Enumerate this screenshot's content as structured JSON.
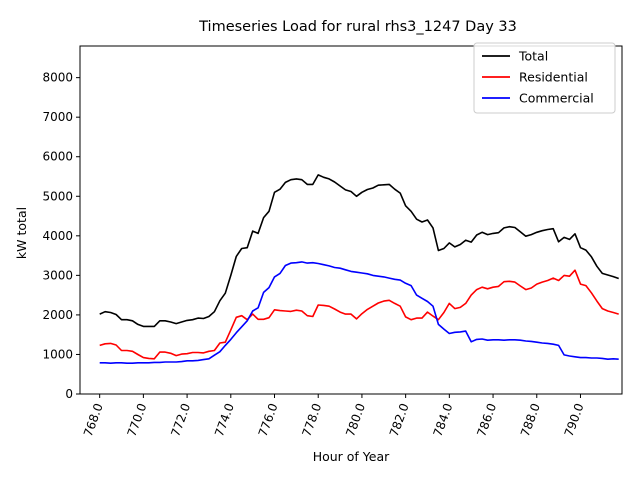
{
  "chart_data": {
    "type": "line",
    "title": "Timeseries Load for rural rhs3_1247  Day 33",
    "xlabel": "Hour of Year",
    "ylabel": "kW total",
    "xlim": [
      767.1,
      791.9
    ],
    "ylim": [
      0,
      8800
    ],
    "xticks": [
      768,
      770,
      772,
      774,
      776,
      778,
      780,
      782,
      784,
      786,
      788,
      790
    ],
    "xtick_labels": [
      "768.0",
      "770.0",
      "772.0",
      "774.0",
      "776.0",
      "778.0",
      "780.0",
      "782.0",
      "784.0",
      "786.0",
      "788.0",
      "790.0"
    ],
    "yticks": [
      0,
      1000,
      2000,
      3000,
      4000,
      5000,
      6000,
      7000,
      8000
    ],
    "ytick_labels": [
      "0",
      "1000",
      "2000",
      "3000",
      "4000",
      "5000",
      "6000",
      "7000",
      "8000"
    ],
    "legend_position": "top-right",
    "x": [
      768.0,
      768.25,
      768.5,
      768.75,
      769.0,
      769.25,
      769.5,
      769.75,
      770.0,
      770.25,
      770.5,
      770.75,
      771.0,
      771.25,
      771.5,
      771.75,
      772.0,
      772.25,
      772.5,
      772.75,
      773.0,
      773.25,
      773.5,
      773.75,
      774.0,
      774.25,
      774.5,
      774.75,
      775.0,
      775.25,
      775.5,
      775.75,
      776.0,
      776.25,
      776.5,
      776.75,
      777.0,
      777.25,
      777.5,
      777.75,
      778.0,
      778.25,
      778.5,
      778.75,
      779.0,
      779.25,
      779.5,
      779.75,
      780.0,
      780.25,
      780.5,
      780.75,
      781.0,
      781.25,
      781.5,
      781.75,
      782.0,
      782.25,
      782.5,
      782.75,
      783.0,
      783.25,
      783.5,
      783.75,
      784.0,
      784.25,
      784.5,
      784.75,
      785.0,
      785.25,
      785.5,
      785.75,
      786.0,
      786.25,
      786.5,
      786.75,
      787.0,
      787.25,
      787.5,
      787.75,
      788.0,
      788.25,
      788.5,
      788.75,
      789.0,
      789.25,
      789.5,
      789.75,
      790.0,
      790.25,
      790.5,
      790.75,
      791.0,
      791.25,
      791.5,
      791.75
    ],
    "series": [
      {
        "name": "Total",
        "color": "#000000",
        "values": [
          2020,
          2080,
          2060,
          2010,
          1880,
          1880,
          1850,
          1760,
          1710,
          1710,
          1710,
          1850,
          1850,
          1820,
          1780,
          1820,
          1860,
          1880,
          1920,
          1910,
          1960,
          2080,
          2360,
          2550,
          3000,
          3480,
          3680,
          3700,
          4120,
          4060,
          4460,
          4620,
          5100,
          5180,
          5350,
          5420,
          5440,
          5420,
          5300,
          5300,
          5540,
          5480,
          5440,
          5360,
          5260,
          5160,
          5120,
          5000,
          5100,
          5170,
          5210,
          5280,
          5290,
          5300,
          5180,
          5080,
          4760,
          4620,
          4420,
          4350,
          4400,
          4200,
          3630,
          3680,
          3820,
          3720,
          3780,
          3890,
          3840,
          4020,
          4090,
          4030,
          4060,
          4080,
          4200,
          4230,
          4210,
          4100,
          3990,
          4030,
          4090,
          4130,
          4160,
          4180,
          3850,
          3960,
          3910,
          4050,
          3700,
          3640,
          3470,
          3230,
          3050,
          3010,
          2970,
          2920
        ]
      },
      {
        "name": "Residential",
        "color": "#ff0000",
        "values": [
          1230,
          1270,
          1280,
          1240,
          1100,
          1100,
          1080,
          1000,
          920,
          900,
          890,
          1060,
          1060,
          1030,
          970,
          1010,
          1020,
          1050,
          1050,
          1040,
          1080,
          1100,
          1290,
          1310,
          1620,
          1940,
          1980,
          1880,
          2020,
          1890,
          1890,
          1930,
          2130,
          2110,
          2100,
          2090,
          2120,
          2100,
          1980,
          1960,
          2250,
          2240,
          2220,
          2150,
          2070,
          2020,
          2020,
          1900,
          2030,
          2140,
          2220,
          2300,
          2350,
          2370,
          2290,
          2220,
          1950,
          1880,
          1920,
          1920,
          2070,
          1970,
          1880,
          2060,
          2290,
          2160,
          2190,
          2290,
          2500,
          2640,
          2700,
          2660,
          2700,
          2720,
          2840,
          2850,
          2830,
          2730,
          2640,
          2680,
          2780,
          2830,
          2870,
          2930,
          2870,
          3000,
          2980,
          3130,
          2780,
          2740,
          2560,
          2350,
          2160,
          2100,
          2060,
          2020
        ]
      },
      {
        "name": "Commercial",
        "color": "#0000ff",
        "values": [
          790,
          790,
          780,
          790,
          790,
          780,
          780,
          790,
          790,
          790,
          800,
          800,
          810,
          810,
          810,
          820,
          840,
          840,
          850,
          870,
          890,
          980,
          1070,
          1230,
          1380,
          1550,
          1700,
          1850,
          2100,
          2180,
          2570,
          2690,
          2960,
          3050,
          3250,
          3310,
          3320,
          3340,
          3310,
          3320,
          3300,
          3270,
          3240,
          3200,
          3180,
          3140,
          3100,
          3080,
          3060,
          3040,
          3000,
          2980,
          2960,
          2930,
          2900,
          2880,
          2800,
          2740,
          2500,
          2420,
          2340,
          2220,
          1760,
          1640,
          1530,
          1560,
          1570,
          1590,
          1320,
          1380,
          1390,
          1360,
          1370,
          1370,
          1360,
          1370,
          1370,
          1360,
          1340,
          1330,
          1310,
          1290,
          1280,
          1260,
          1230,
          990,
          960,
          940,
          920,
          920,
          910,
          910,
          900,
          880,
          890,
          880
        ]
      }
    ]
  }
}
